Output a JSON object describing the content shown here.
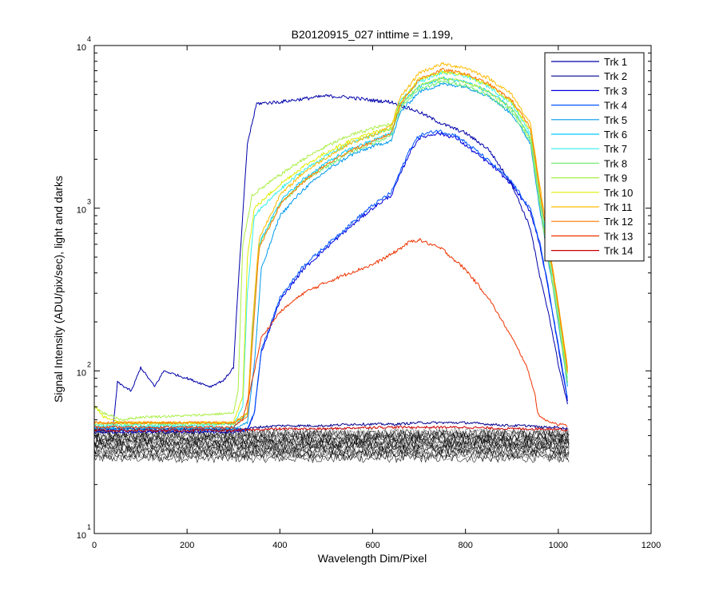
{
  "chart_data": {
    "type": "line",
    "title": "B20120915_027 inttime = 1.199,",
    "xlabel": "Wavelength Dim/Pixel",
    "ylabel": "Signal Intensity (ADU/pix/sec), light and darks",
    "xlim": [
      0,
      1200
    ],
    "ylim": [
      10,
      10000
    ],
    "yscale": "log",
    "grid": false,
    "legend_position": "top-right",
    "x_ticks": [
      {
        "value": 0,
        "label": "0"
      },
      {
        "value": 200,
        "label": "200"
      },
      {
        "value": 400,
        "label": "400"
      },
      {
        "value": 600,
        "label": "600"
      },
      {
        "value": 800,
        "label": "800"
      },
      {
        "value": 1000,
        "label": "1000"
      },
      {
        "value": 1200,
        "label": "1200"
      }
    ],
    "y_ticks": [
      {
        "value": 10,
        "base": "10",
        "exp": "1"
      },
      {
        "value": 100,
        "base": "10",
        "exp": "2"
      },
      {
        "value": 1000,
        "base": "10",
        "exp": "3"
      },
      {
        "value": 10000,
        "base": "10",
        "exp": "4"
      }
    ],
    "dark_band": {
      "color": "#000000",
      "x_range": [
        0,
        1024
      ],
      "levels": [
        29,
        31,
        33,
        35,
        37,
        39,
        41
      ]
    },
    "series": [
      {
        "name": "Trk 1",
        "color": "#0000AA",
        "x": [
          0,
          40,
          50,
          80,
          100,
          130,
          150,
          200,
          250,
          280,
          300,
          310,
          320,
          330,
          350,
          400,
          450,
          500,
          550,
          600,
          640,
          700,
          750,
          800,
          850,
          900,
          940,
          960,
          980,
          1000,
          1020
        ],
        "y": [
          43,
          43,
          85,
          75,
          105,
          80,
          100,
          90,
          80,
          88,
          105,
          330,
          900,
          2500,
          4400,
          4500,
          4700,
          4900,
          4800,
          4600,
          4500,
          3900,
          3300,
          2900,
          2300,
          1400,
          750,
          380,
          220,
          110,
          62
        ],
        "dark": 40
      },
      {
        "name": "Trk 2",
        "color": "#00008F",
        "x": [
          0,
          60,
          100,
          200,
          300,
          330,
          350,
          400,
          450,
          500,
          550,
          600,
          650,
          700,
          750,
          800,
          850,
          900,
          940,
          960,
          980,
          1000,
          1020
        ],
        "y": [
          44,
          44,
          44,
          44,
          44,
          44,
          45,
          46,
          46,
          46,
          47,
          47,
          47,
          48,
          48,
          48,
          47,
          46,
          46,
          45,
          45,
          45,
          44
        ],
        "dark": 38
      },
      {
        "name": "Trk 3",
        "color": "#0000DD",
        "x": [
          0,
          100,
          200,
          300,
          330,
          345,
          360,
          400,
          450,
          500,
          550,
          600,
          640,
          680,
          700,
          740,
          780,
          820,
          860,
          900,
          940,
          960,
          980,
          1000,
          1020
        ],
        "y": [
          42,
          42,
          42,
          42,
          43,
          55,
          130,
          270,
          420,
          570,
          760,
          1000,
          1200,
          2200,
          2700,
          2900,
          2700,
          2200,
          1800,
          1400,
          950,
          600,
          300,
          140,
          65
        ],
        "dark": 35
      },
      {
        "name": "Trk 4",
        "color": "#0055FF",
        "x": [
          0,
          100,
          200,
          300,
          330,
          345,
          360,
          400,
          450,
          500,
          550,
          600,
          640,
          680,
          700,
          740,
          780,
          820,
          860,
          900,
          940,
          960,
          980,
          1000,
          1020
        ],
        "y": [
          43,
          43,
          43,
          43,
          44,
          56,
          135,
          280,
          440,
          590,
          790,
          1040,
          1250,
          2300,
          2800,
          3000,
          2800,
          2300,
          1850,
          1450,
          980,
          620,
          310,
          145,
          68
        ],
        "dark": 33
      },
      {
        "name": "Trk 5",
        "color": "#0099EE",
        "x": [
          0,
          100,
          200,
          300,
          330,
          345,
          360,
          400,
          450,
          500,
          550,
          600,
          640,
          660,
          700,
          750,
          800,
          850,
          900,
          940,
          960,
          980,
          1000,
          1020
        ],
        "y": [
          44,
          44,
          44,
          44,
          48,
          110,
          420,
          900,
          1300,
          1700,
          2100,
          2400,
          2600,
          3900,
          5200,
          5800,
          5600,
          4900,
          3800,
          2500,
          1000,
          450,
          200,
          80
        ],
        "dark": 32
      },
      {
        "name": "Trk 6",
        "color": "#00CCFF",
        "x": [
          0,
          100,
          200,
          300,
          330,
          340,
          355,
          400,
          450,
          500,
          550,
          600,
          640,
          660,
          700,
          750,
          800,
          850,
          900,
          940,
          960,
          980,
          1000,
          1020
        ],
        "y": [
          45,
          45,
          45,
          45,
          55,
          160,
          600,
          1100,
          1500,
          1900,
          2300,
          2600,
          2900,
          4300,
          5600,
          6300,
          6000,
          5200,
          4100,
          2700,
          1100,
          480,
          210,
          85
        ],
        "dark": 31
      },
      {
        "name": "Trk 7",
        "color": "#33EEEE",
        "x": [
          0,
          100,
          200,
          300,
          320,
          330,
          345,
          400,
          450,
          500,
          550,
          600,
          640,
          660,
          700,
          750,
          800,
          850,
          900,
          940,
          960,
          980,
          1000,
          1020
        ],
        "y": [
          46,
          46,
          46,
          47,
          60,
          300,
          900,
          1300,
          1700,
          2100,
          2500,
          2800,
          3100,
          4600,
          6000,
          6800,
          6500,
          5600,
          4400,
          2900,
          1200,
          520,
          230,
          90
        ],
        "dark": 30
      },
      {
        "name": "Trk 8",
        "color": "#77EE77",
        "x": [
          0,
          100,
          200,
          300,
          330,
          340,
          355,
          400,
          450,
          500,
          550,
          600,
          640,
          660,
          700,
          750,
          800,
          850,
          900,
          940,
          960,
          980,
          1000,
          1020
        ],
        "y": [
          47,
          47,
          47,
          47,
          55,
          150,
          580,
          1050,
          1450,
          1800,
          2200,
          2500,
          2800,
          4100,
          5400,
          6000,
          5700,
          4900,
          3900,
          2600,
          1050,
          470,
          210,
          85
        ],
        "dark": 34
      },
      {
        "name": "Trk 9",
        "color": "#AAEE44",
        "x": [
          0,
          20,
          60,
          100,
          200,
          300,
          310,
          320,
          340,
          400,
          450,
          500,
          550,
          600,
          640,
          660,
          700,
          750,
          800,
          850,
          900,
          940,
          960,
          980,
          1000,
          1020
        ],
        "y": [
          60,
          55,
          50,
          52,
          53,
          55,
          75,
          600,
          1200,
          1600,
          2000,
          2400,
          2800,
          3100,
          3300,
          4300,
          5700,
          6300,
          6000,
          5200,
          4100,
          2700,
          1100,
          480,
          210,
          85
        ],
        "dark": 36
      },
      {
        "name": "Trk 10",
        "color": "#DDEE00",
        "x": [
          0,
          20,
          60,
          100,
          200,
          300,
          320,
          330,
          345,
          400,
          450,
          500,
          550,
          600,
          640,
          660,
          700,
          750,
          800,
          850,
          900,
          940,
          960,
          980,
          1000,
          1020
        ],
        "y": [
          62,
          52,
          48,
          48,
          48,
          48,
          70,
          500,
          1000,
          1400,
          1800,
          2200,
          2600,
          2900,
          3100,
          4500,
          6200,
          6900,
          6600,
          5700,
          4500,
          3000,
          1250,
          550,
          240,
          95
        ],
        "dark": 39
      },
      {
        "name": "Trk 11",
        "color": "#FFBB00",
        "x": [
          0,
          100,
          200,
          300,
          330,
          340,
          355,
          400,
          450,
          500,
          550,
          600,
          640,
          660,
          700,
          750,
          800,
          850,
          900,
          940,
          960,
          980,
          1000,
          1020
        ],
        "y": [
          48,
          48,
          48,
          48,
          55,
          180,
          650,
          1200,
          1650,
          2050,
          2500,
          2800,
          3200,
          4800,
          6800,
          7700,
          7300,
          6300,
          5000,
          3300,
          1400,
          600,
          260,
          105
        ],
        "dark": 41
      },
      {
        "name": "Trk 12",
        "color": "#FF7700",
        "x": [
          0,
          100,
          200,
          300,
          330,
          340,
          355,
          400,
          450,
          500,
          550,
          600,
          640,
          660,
          700,
          750,
          800,
          850,
          900,
          940,
          960,
          980,
          1000,
          1020
        ],
        "y": [
          48,
          48,
          48,
          48,
          52,
          140,
          560,
          1050,
          1450,
          1850,
          2250,
          2550,
          2900,
          4400,
          6200,
          7100,
          6700,
          5800,
          4600,
          3100,
          1300,
          560,
          250,
          100
        ],
        "dark": 37
      },
      {
        "name": "Trk 13",
        "color": "#EE3300",
        "x": [
          0,
          100,
          200,
          300,
          320,
          330,
          345,
          360,
          400,
          450,
          500,
          550,
          600,
          640,
          680,
          700,
          750,
          800,
          850,
          900,
          930,
          945,
          950,
          955,
          970,
          1000,
          1020
        ],
        "y": [
          45,
          45,
          45,
          45,
          50,
          65,
          100,
          160,
          230,
          300,
          350,
          400,
          450,
          520,
          620,
          640,
          560,
          420,
          280,
          160,
          110,
          80,
          72,
          55,
          50,
          47,
          46
        ],
        "dark": 42
      },
      {
        "name": "Trk 14",
        "color": "#CC0000",
        "x": [
          0,
          100,
          200,
          300,
          400,
          500,
          600,
          700,
          800,
          900,
          1000,
          1020
        ],
        "y": [
          43,
          43,
          43,
          43,
          44,
          44,
          45,
          45,
          45,
          44,
          44,
          43
        ],
        "dark": 36
      }
    ]
  }
}
